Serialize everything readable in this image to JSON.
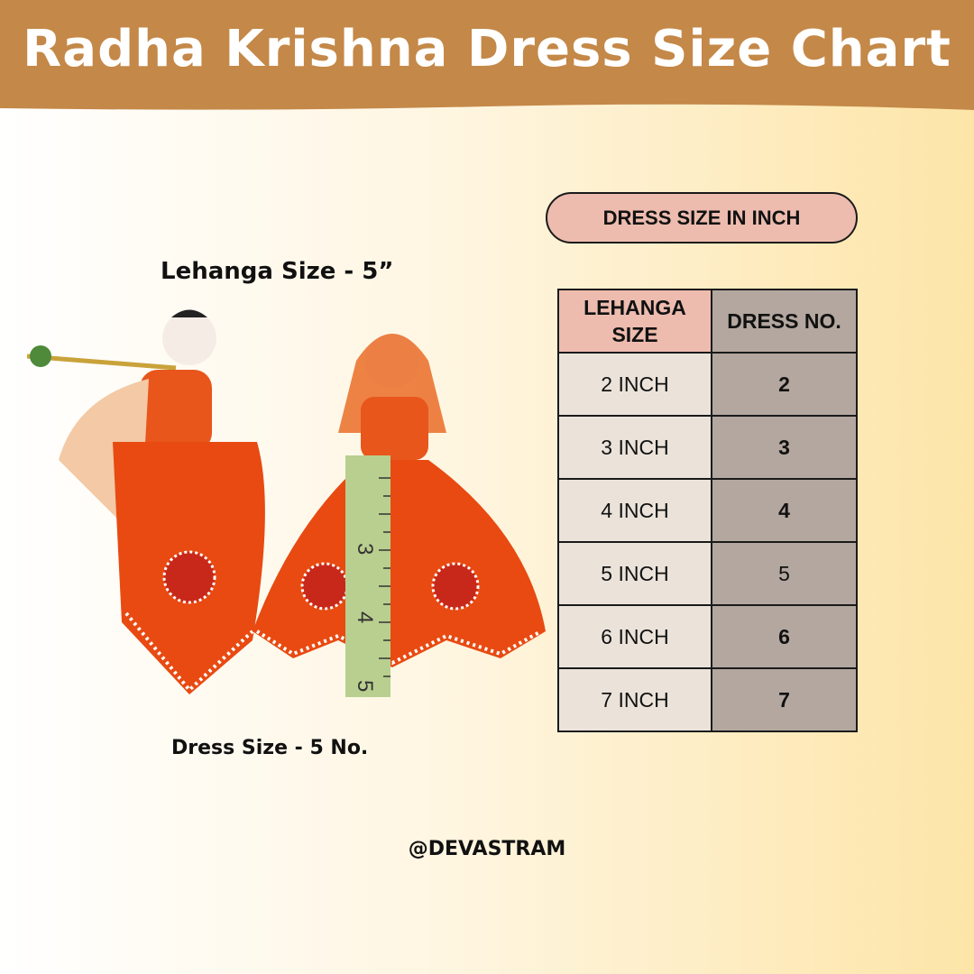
{
  "title": "Radha Krishna Dress Size Chart",
  "colors": {
    "header": "#c48848",
    "pill": "#edbcaf",
    "table_left": "#ebe3da",
    "table_right": "#b3a79f"
  },
  "left_panel": {
    "lehanga_label": "Lehanga Size - 5”",
    "dress_label": "Dress Size - 5 No.",
    "ruler_marks": [
      "3",
      "4",
      "5"
    ]
  },
  "table": {
    "pill_label": "DRESS SIZE IN INCH",
    "headers": [
      "LEHANGA SIZE",
      "DRESS NO."
    ],
    "rows": [
      [
        "2 INCH",
        "2"
      ],
      [
        "3 INCH",
        "3"
      ],
      [
        "4 INCH",
        "4"
      ],
      [
        "5 INCH",
        "5"
      ],
      [
        "6 INCH",
        "6"
      ],
      [
        "7 INCH",
        "7"
      ]
    ]
  },
  "footer": "@DEVASTRAM"
}
